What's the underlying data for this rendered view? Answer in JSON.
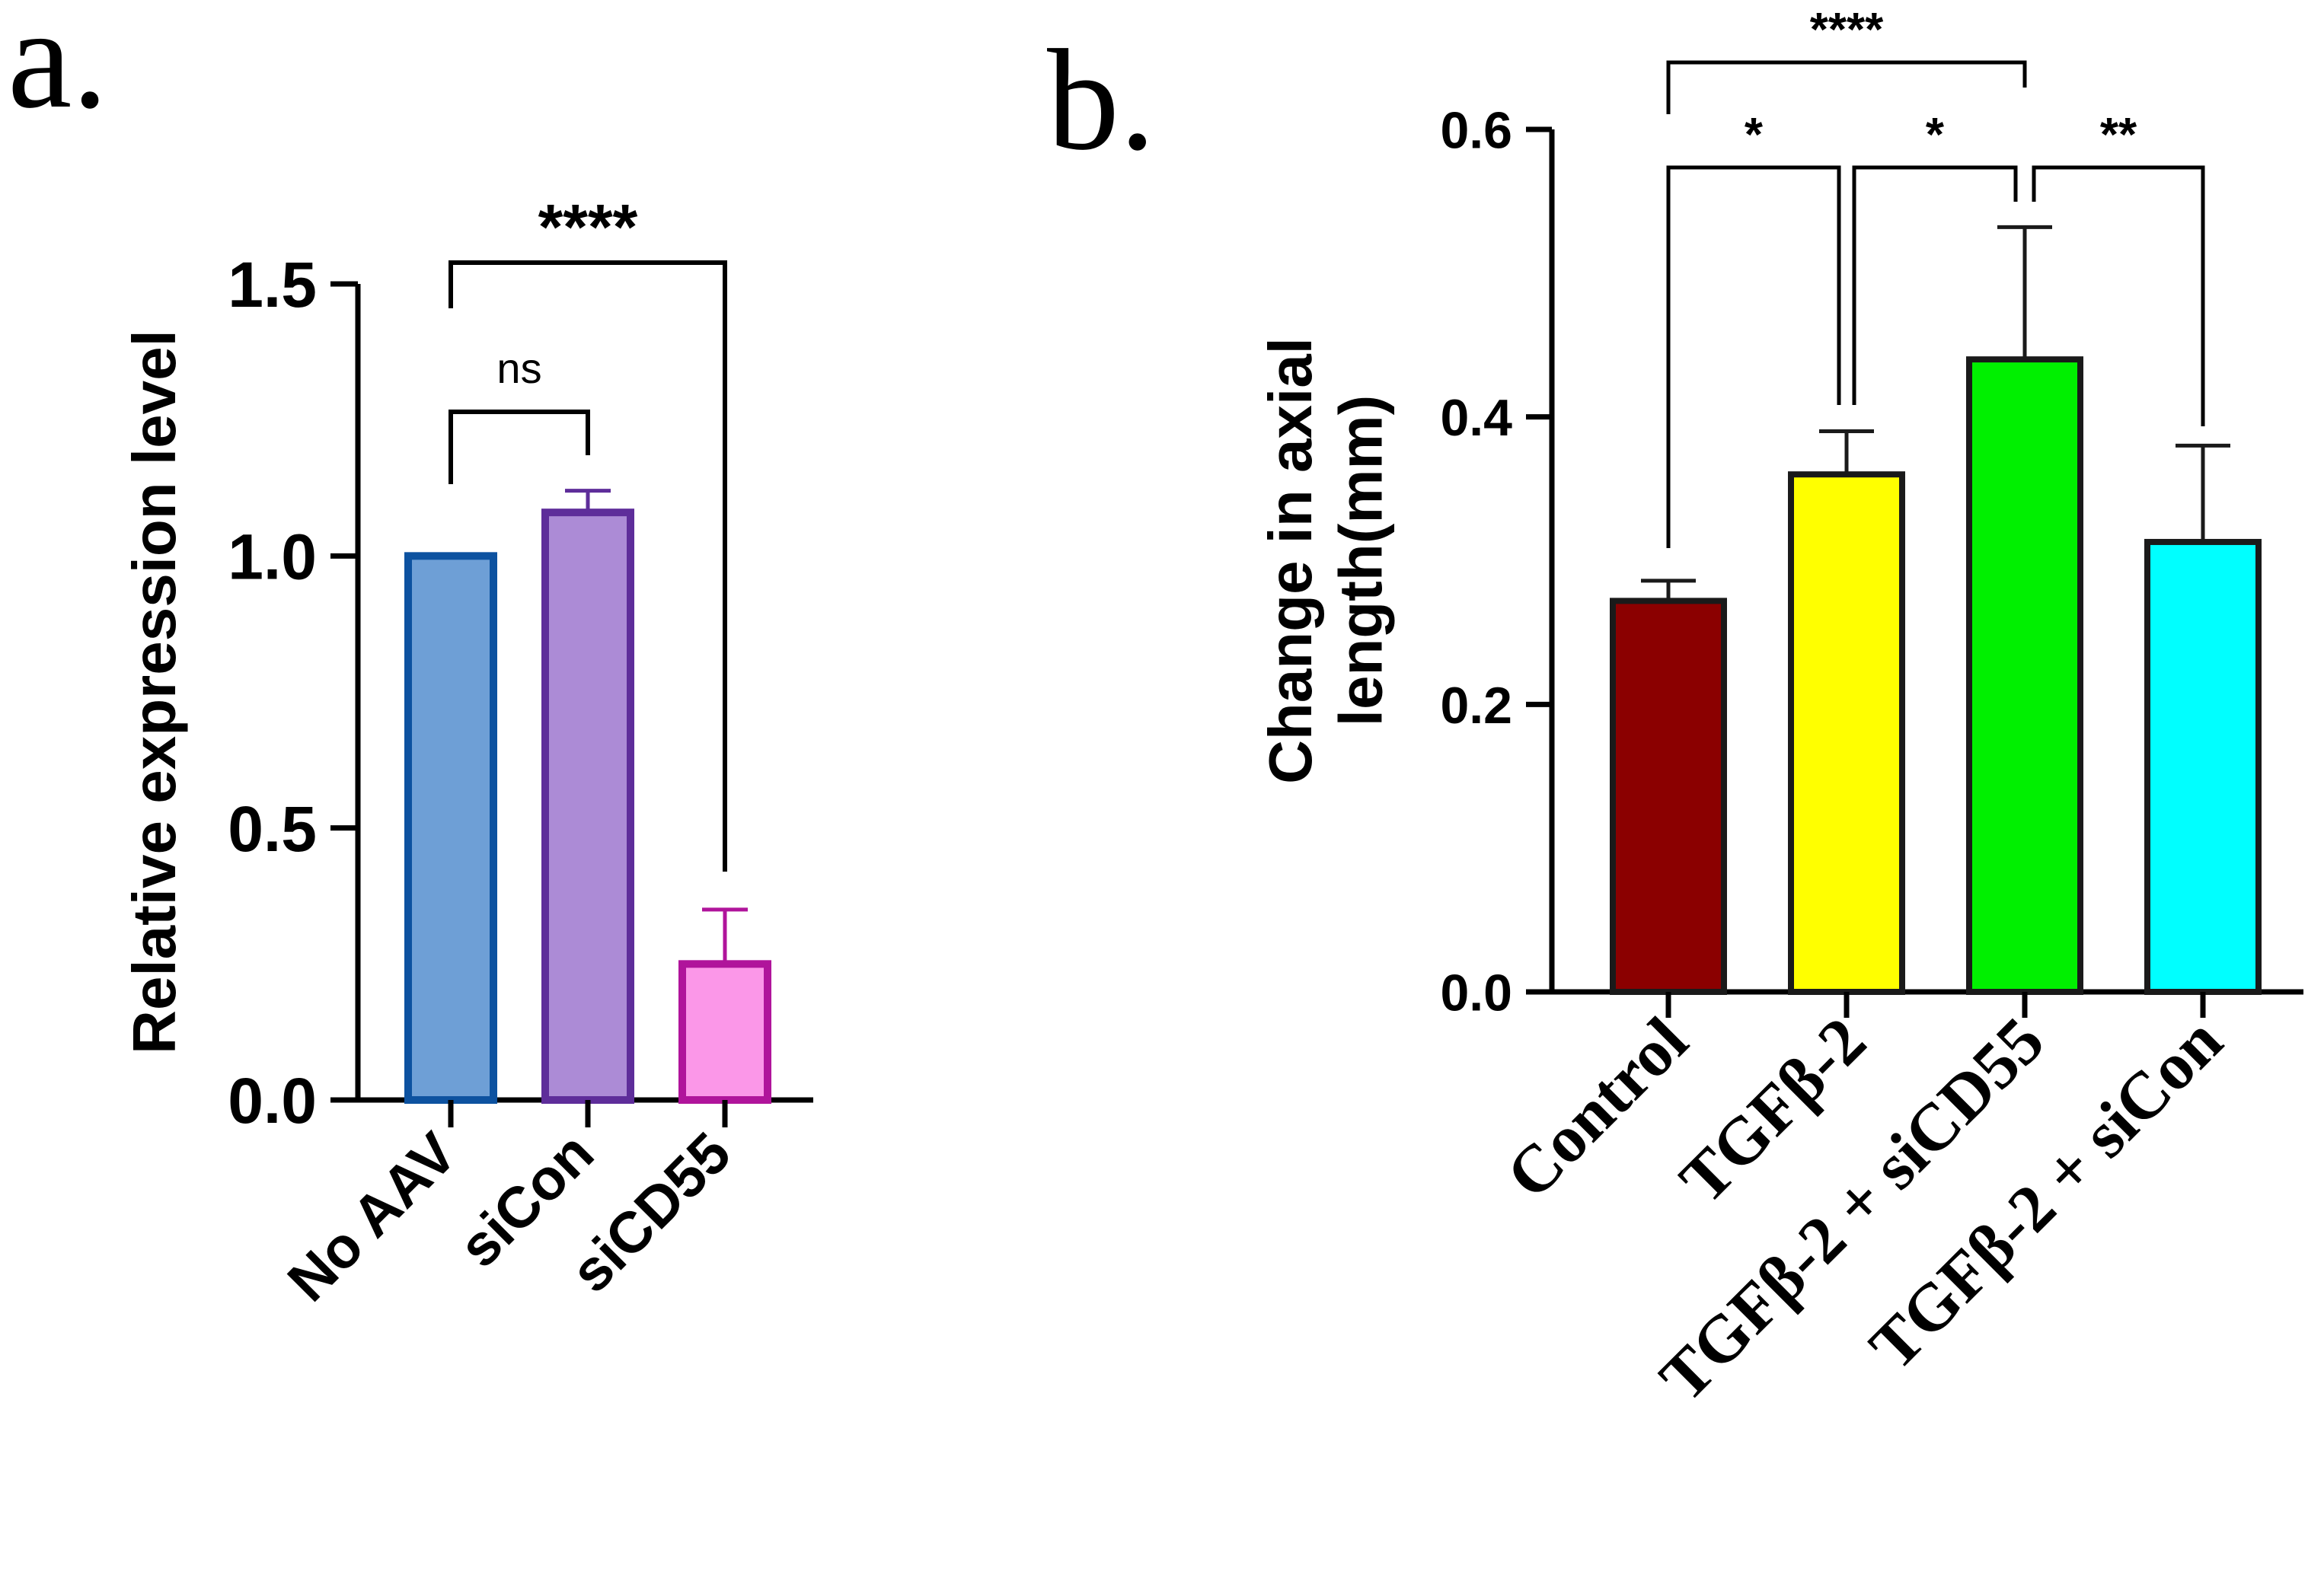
{
  "panel_a_label": "a.",
  "panel_b_label": "b.",
  "chart_data": [
    {
      "type": "bar",
      "panel": "a.",
      "title": "",
      "xlabel": "",
      "ylabel": "Relative expression level",
      "ylim": [
        0,
        1.5
      ],
      "yticks": [
        0.0,
        0.5,
        1.0,
        1.5
      ],
      "ytick_labels": [
        "0.0",
        "0.5",
        "1.0",
        "1.5"
      ],
      "categories": [
        "No AAV",
        "siCon",
        "siCD55"
      ],
      "values": [
        1.0,
        1.08,
        0.25
      ],
      "errors": [
        0,
        0.04,
        0.1
      ],
      "fill_colors": [
        "#6e9fd6",
        "#ac8bd6",
        "#fb97e8"
      ],
      "edge_colors": [
        "#0d52a0",
        "#5e2d9a",
        "#b0149b"
      ],
      "significance": [
        {
          "from": 0,
          "to": 1,
          "label": "ns"
        },
        {
          "from": 0,
          "to": 2,
          "label": "****"
        }
      ]
    },
    {
      "type": "bar",
      "panel": "b.",
      "title": "",
      "xlabel": "",
      "ylabel_lines": [
        "Change in axial",
        "length(mm)"
      ],
      "ylim": [
        0,
        0.6
      ],
      "yticks": [
        0.0,
        0.2,
        0.4,
        0.6
      ],
      "ytick_labels": [
        "0.0",
        "0.2",
        "0.4",
        "0.6"
      ],
      "categories": [
        "Control",
        "TGFβ-2",
        "TGFβ-2 + siCD55",
        "TGFβ-2 + siCon"
      ],
      "values": [
        0.272,
        0.36,
        0.44,
        0.313
      ],
      "errors": [
        0.014,
        0.03,
        0.092,
        0.067
      ],
      "fill_colors": [
        "#8b0000",
        "#ffff00",
        "#00f000",
        "#00ffff"
      ],
      "edge_colors": [
        "#1a1a1a",
        "#1a1a1a",
        "#1a1a1a",
        "#1a1a1a"
      ],
      "significance": [
        {
          "from": 0,
          "to": 1,
          "label": "*"
        },
        {
          "from": 1,
          "to": 2,
          "label": "*"
        },
        {
          "from": 2,
          "to": 3,
          "label": "**"
        },
        {
          "from": 0,
          "to": 2,
          "label": "****"
        }
      ]
    }
  ]
}
